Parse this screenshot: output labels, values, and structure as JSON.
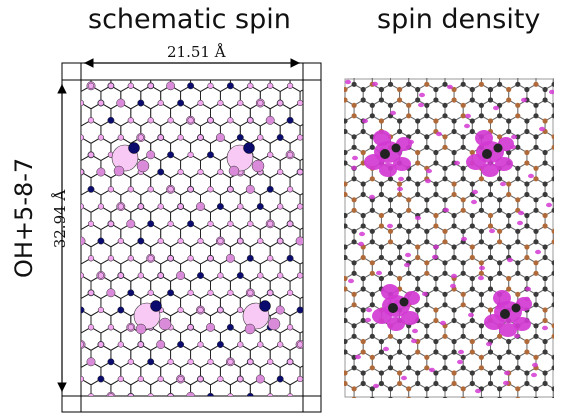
{
  "panels": {
    "left_title": "schematic spin",
    "right_title": "spin density"
  },
  "row_label": "OH+5-8-7",
  "dimensions": {
    "width_label": "21.51 Å",
    "height_label": "32.94 Å"
  },
  "colors": {
    "spin_small": "#f3a6f0",
    "spin_large": "#d98ad8",
    "spin_halo": "#f7c9f4",
    "spin_negative": "#0b0b6e",
    "density_lobe": "#d33ad3",
    "carbon": "#3a3a3a",
    "oxygen": "#b06a3a",
    "bond": "#6a6a6a"
  }
}
